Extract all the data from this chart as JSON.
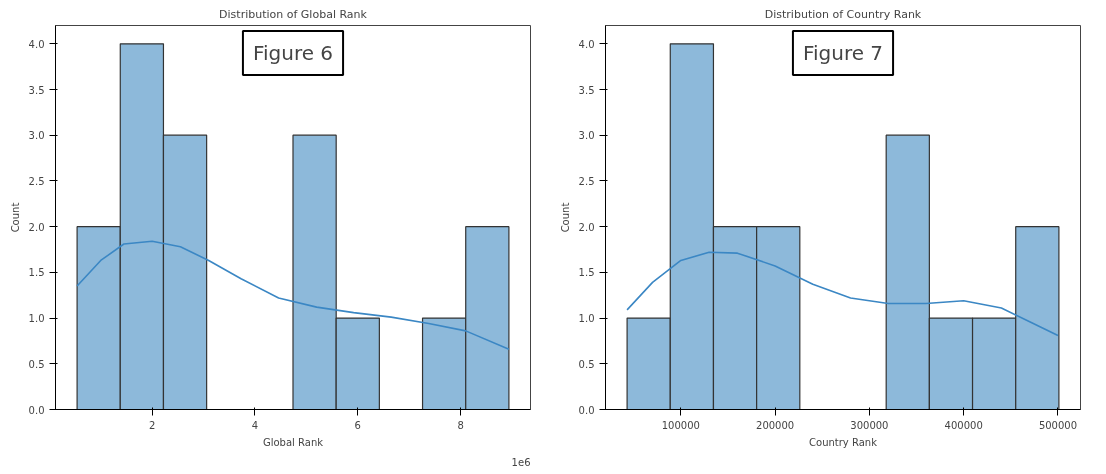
{
  "chart_data": [
    {
      "type": "histogram",
      "title": "Distribution of Global Rank",
      "xlabel": "Global Rank",
      "ylabel": "Count",
      "bins": [
        0.54,
        1.38,
        2.22,
        3.06,
        3.9,
        4.74,
        5.58,
        6.42,
        7.26,
        8.1,
        8.94
      ],
      "series": [
        {
          "type": "histogram",
          "color": "#8db9da",
          "values": [
            2,
            4,
            3,
            0,
            0,
            3,
            1,
            0,
            1,
            2
          ]
        },
        {
          "type": "line",
          "color": "#3b87c4",
          "x": [
            0.54,
            1.0,
            1.45,
            2.0,
            2.55,
            3.1,
            3.73,
            4.46,
            5.2,
            5.92,
            6.65,
            7.38,
            8.1,
            8.94
          ],
          "values": [
            1.35,
            1.63,
            1.81,
            1.84,
            1.78,
            1.63,
            1.43,
            1.22,
            1.12,
            1.06,
            1.01,
            0.94,
            0.86,
            0.66
          ]
        }
      ],
      "xlim": [
        0.12,
        9.36
      ],
      "xticks": [
        2,
        4,
        6,
        8
      ],
      "ylim": [
        0,
        4.2
      ],
      "yticks": [
        {
          "value": 0,
          "label": "0.0"
        },
        {
          "value": 0.5,
          "label": "0.5"
        },
        {
          "value": 1,
          "label": "1.0"
        },
        {
          "value": 1.5,
          "label": "1.5"
        },
        {
          "value": 2,
          "label": "2.0"
        },
        {
          "value": 2.5,
          "label": "2.5"
        },
        {
          "value": 3,
          "label": "3.0"
        },
        {
          "value": 3.5,
          "label": "3.5"
        },
        {
          "value": 4,
          "label": "4.0"
        }
      ],
      "annotations": [
        "Figure 6",
        "1e6"
      ],
      "grid": false
    },
    {
      "type": "histogram",
      "title": "Distribution of Country Rank",
      "xlabel": "Country Rank",
      "ylabel": "Count",
      "bins": [
        43000,
        88800,
        134600,
        180400,
        226200,
        272000,
        317800,
        363600,
        409400,
        455200,
        501000
      ],
      "series": [
        {
          "type": "histogram",
          "color": "#8db9da",
          "values": [
            1,
            4,
            2,
            2,
            0,
            0,
            3,
            1,
            1,
            2
          ]
        },
        {
          "type": "line",
          "color": "#3b87c4",
          "x": [
            43000,
            70000,
            100000,
            130000,
            160000,
            200000,
            240000,
            280000,
            320000,
            360000,
            400000,
            440000,
            470000,
            500000
          ],
          "values": [
            1.09,
            1.39,
            1.63,
            1.72,
            1.71,
            1.57,
            1.37,
            1.22,
            1.16,
            1.16,
            1.19,
            1.11,
            0.96,
            0.81
          ]
        }
      ],
      "xlim": [
        20100,
        523900
      ],
      "xticks": [
        100000,
        200000,
        300000,
        400000,
        500000
      ],
      "ylim": [
        0,
        4.2
      ],
      "yticks": [
        {
          "value": 0,
          "label": "0.0"
        },
        {
          "value": 0.5,
          "label": "0.5"
        },
        {
          "value": 1,
          "label": "1.0"
        },
        {
          "value": 1.5,
          "label": "1.5"
        },
        {
          "value": 2,
          "label": "2.0"
        },
        {
          "value": 2.5,
          "label": "2.5"
        },
        {
          "value": 3,
          "label": "3.0"
        },
        {
          "value": 3.5,
          "label": "3.5"
        },
        {
          "value": 4,
          "label": "4.0"
        }
      ],
      "annotations": [
        "Figure 7"
      ],
      "grid": false
    }
  ]
}
